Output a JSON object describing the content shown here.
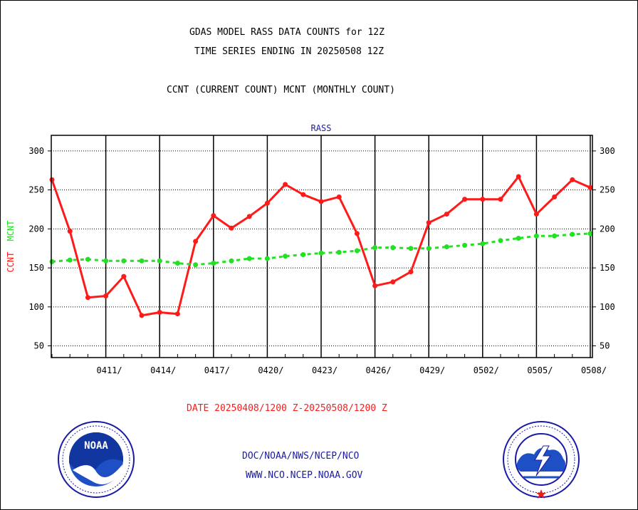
{
  "title_line1": "GDAS MODEL RASS DATA COUNTS for 12Z",
  "title_line2": "TIME SERIES ENDING IN 20250508 12Z",
  "subtitle": "CCNT (CURRENT COUNT) MCNT (MONTHLY COUNT)",
  "date_range": "DATE 20250408/1200 Z-20250508/1200 Z",
  "footer": {
    "line1": "DOC/NOAA/NWS/NCEP/NCO",
    "line2": "WWW.NCO.NCEP.NOAA.GOV"
  },
  "logos": {
    "left": "noaa-logo",
    "left_text": "NOAA",
    "right": "nws-logo"
  },
  "colors": {
    "ccnt": "#ff1a1a",
    "mcnt": "#22e022",
    "panel_label": "#1a1aa6",
    "date_text": "#ff1a1a"
  },
  "chart_data": {
    "type": "line",
    "panel_label": "RASS",
    "ylabel_parts": [
      {
        "text": "CCNT",
        "color": "#ff1a1a"
      },
      {
        "text": "MCNT",
        "color": "#22e022"
      }
    ],
    "ylim": [
      35,
      320
    ],
    "yticks": [
      50,
      100,
      150,
      200,
      250,
      300
    ],
    "ytick_labels": [
      "50",
      "100",
      "150",
      "200",
      "250",
      "300"
    ],
    "x_start": "2025-04-08",
    "x_days": 31,
    "xtick_days": [
      3,
      6,
      9,
      12,
      15,
      18,
      21,
      24,
      27,
      30
    ],
    "xtick_labels": [
      "0411/",
      "0414/",
      "0417/",
      "0420/",
      "0423/",
      "0426/",
      "0429/",
      "0502/",
      "0505/",
      "0508/"
    ],
    "grid": true,
    "series": [
      {
        "name": "CCNT",
        "color": "#ff1a1a",
        "values": [
          263,
          197,
          112,
          114,
          139,
          89,
          93,
          91,
          184,
          217,
          201,
          216,
          233,
          257,
          244,
          235,
          241,
          194,
          127,
          132,
          145,
          208,
          219,
          238,
          238,
          238,
          267,
          219,
          241,
          263,
          253
        ]
      },
      {
        "name": "MCNT",
        "color": "#22e022",
        "values": [
          158,
          160,
          161,
          159,
          159,
          159,
          159,
          156,
          154,
          156,
          159,
          162,
          162,
          165,
          167,
          169,
          170,
          172,
          176,
          176,
          175,
          175,
          177,
          179,
          181,
          185,
          188,
          191,
          191,
          193,
          194
        ]
      }
    ]
  }
}
